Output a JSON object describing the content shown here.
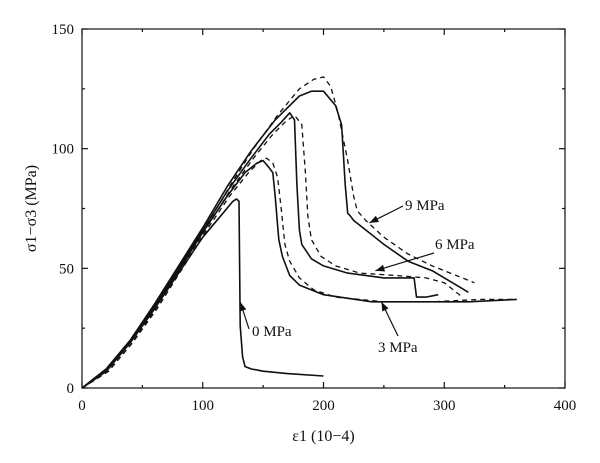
{
  "chart_data": {
    "type": "line",
    "title": "",
    "xlabel": "ε1 (10−4)",
    "ylabel": "σ1−σ3 (MPa)",
    "xlim": [
      0,
      400
    ],
    "ylim": [
      0,
      150
    ],
    "x_ticks": [
      0,
      100,
      200,
      300,
      400
    ],
    "y_ticks": [
      0,
      50,
      100,
      150
    ],
    "grid": false,
    "legend": "none (curves labelled directly with arrows)",
    "series": [
      {
        "name": "0 MPa",
        "style": "solid",
        "x": [
          0,
          20,
          40,
          60,
          80,
          100,
          115,
          125,
          128,
          130,
          131,
          133,
          135,
          140,
          150,
          170,
          200
        ],
        "y": [
          0,
          7,
          19,
          33,
          48,
          63,
          72,
          78,
          79,
          78,
          26,
          13,
          9,
          8,
          7,
          6,
          5
        ]
      },
      {
        "name": "3 MPa",
        "style": "solid",
        "x": [
          0,
          20,
          40,
          60,
          80,
          100,
          120,
          135,
          145,
          150,
          155,
          158,
          160,
          163,
          166,
          172,
          180,
          200,
          240,
          280,
          320,
          360
        ],
        "y": [
          0,
          7,
          19,
          33,
          49,
          65,
          80,
          90,
          94,
          95,
          92,
          90,
          80,
          62,
          55,
          47,
          43,
          39,
          36,
          36,
          36,
          37
        ]
      },
      {
        "name": "3 MPa",
        "style": "dashed",
        "x": [
          0,
          22,
          42,
          62,
          82,
          102,
          122,
          138,
          148,
          153,
          158,
          162,
          165,
          168,
          172,
          180,
          192,
          210,
          250,
          290,
          330,
          360
        ],
        "y": [
          0,
          7,
          19,
          33,
          49,
          65,
          80,
          90,
          95,
          96,
          94,
          88,
          75,
          60,
          53,
          46,
          41,
          38,
          36,
          36,
          37,
          37
        ]
      },
      {
        "name": "6 MPa",
        "style": "solid",
        "x": [
          0,
          20,
          40,
          60,
          80,
          100,
          120,
          140,
          155,
          165,
          172,
          176,
          178,
          180,
          182,
          190,
          200,
          220,
          250,
          275,
          277,
          279,
          285,
          295
        ],
        "y": [
          0,
          7,
          19,
          34,
          50,
          66,
          82,
          96,
          106,
          111,
          115,
          112,
          85,
          66,
          60,
          54,
          51,
          48,
          46,
          46,
          38,
          38,
          38,
          39
        ]
      },
      {
        "name": "6 MPa",
        "style": "dashed",
        "x": [
          0,
          22,
          42,
          62,
          82,
          102,
          122,
          142,
          158,
          168,
          176,
          182,
          185,
          187,
          190,
          198,
          210,
          230,
          260,
          285,
          300,
          315
        ],
        "y": [
          0,
          7,
          19,
          34,
          50,
          66,
          82,
          96,
          106,
          111,
          114,
          110,
          90,
          72,
          62,
          55,
          51,
          48,
          47,
          46,
          44,
          38
        ]
      },
      {
        "name": "9 MPa",
        "style": "solid",
        "x": [
          0,
          20,
          40,
          60,
          80,
          100,
          120,
          140,
          160,
          180,
          190,
          200,
          210,
          215,
          218,
          220,
          222,
          225,
          235,
          250,
          270,
          290,
          310,
          320
        ],
        "y": [
          0,
          8,
          20,
          35,
          51,
          67,
          84,
          99,
          112,
          122,
          124,
          124,
          118,
          110,
          85,
          73,
          72,
          70,
          66,
          60,
          53,
          49,
          43,
          40
        ]
      },
      {
        "name": "9 MPa",
        "style": "dashed",
        "x": [
          0,
          22,
          42,
          62,
          82,
          102,
          122,
          142,
          162,
          180,
          192,
          200,
          206,
          212,
          220,
          225,
          228,
          235,
          250,
          270,
          290,
          310,
          325
        ],
        "y": [
          0,
          8,
          20,
          35,
          51,
          67,
          84,
          100,
          114,
          125,
          129,
          130,
          126,
          115,
          95,
          80,
          74,
          70,
          63,
          56,
          51,
          47,
          44
        ]
      }
    ],
    "annotations": [
      {
        "text": "0 MPa",
        "arrow_to": [
          131,
          36
        ]
      },
      {
        "text": "3 MPa",
        "arrow_to": [
          248,
          36
        ]
      },
      {
        "text": "6 MPa",
        "arrow_to": [
          243,
          49
        ]
      },
      {
        "text": "9 MPa",
        "arrow_to": [
          238,
          69
        ]
      }
    ]
  }
}
